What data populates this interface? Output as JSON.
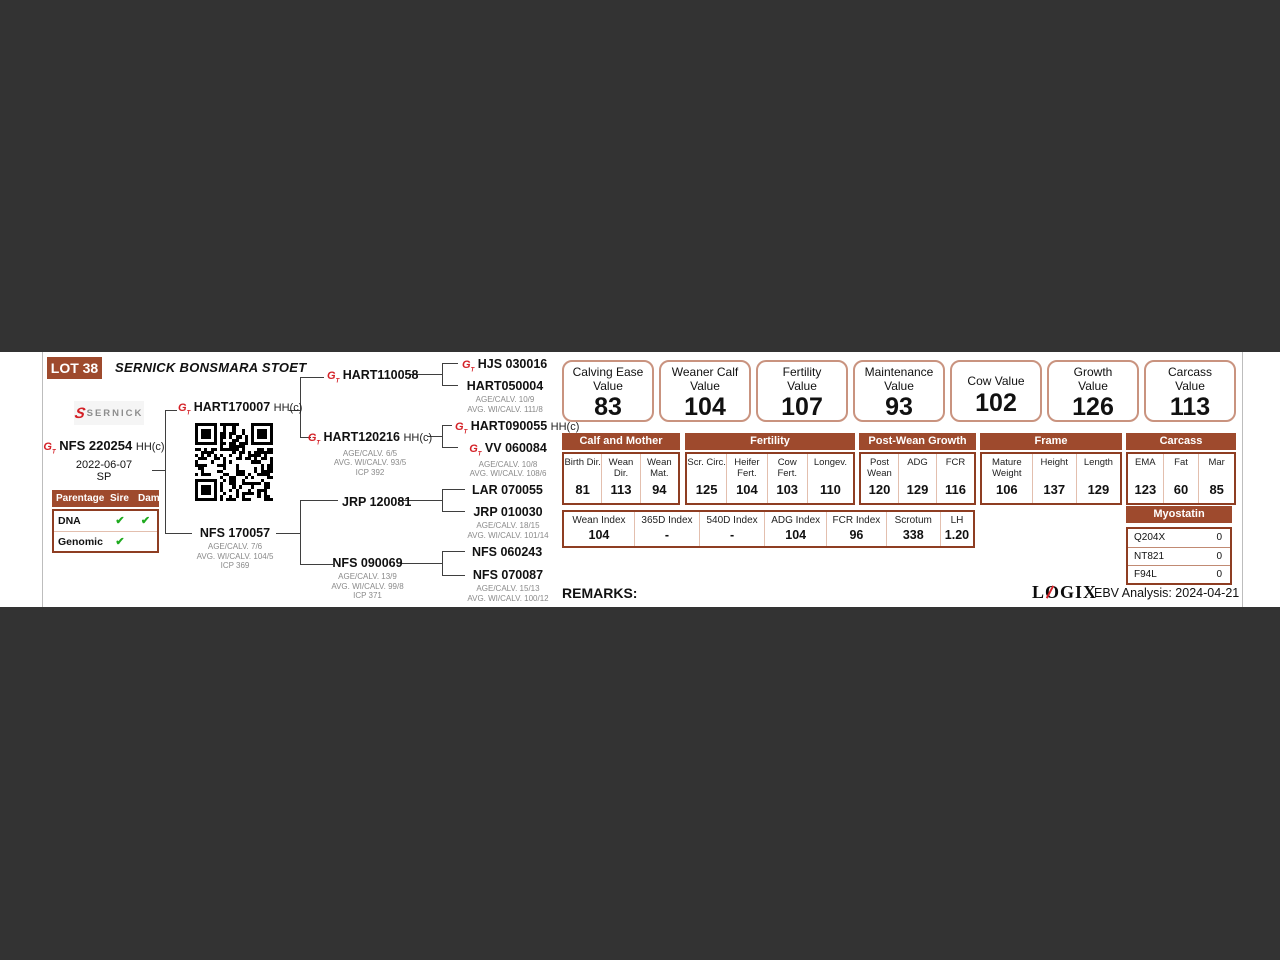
{
  "header": {
    "lot": "LOT 38",
    "title": "SERNICK BONSMARA STOET",
    "brand": "SERNICK"
  },
  "icons": {
    "gt_main": "G",
    "gt_sub": "T",
    "check": "✔",
    "brand_s": "S"
  },
  "colors": {
    "accent_brown": "#9e4a2d",
    "value_box_border": "#c9937f",
    "check_green": "#1faa1f",
    "logo_red": "#d42127"
  },
  "animal": {
    "id": "NFS 220254",
    "suffix": "HH(c)",
    "dob": "2022-06-07",
    "reg": "SP"
  },
  "parentage": {
    "headers": [
      "Parentage",
      "Sire",
      "Dam"
    ],
    "rows": [
      {
        "label": "DNA",
        "sire": "✔",
        "dam": "✔"
      },
      {
        "label": "Genomic",
        "sire": "✔",
        "dam": ""
      }
    ]
  },
  "pedigree": {
    "sire": {
      "id": "HART170007",
      "suffix": "HH(c)"
    },
    "dam": {
      "id": "NFS 170057",
      "stats": [
        "AGE/CALV. 7/6",
        "AVG. WI/CALV. 104/5",
        "ICP 369"
      ]
    },
    "ss": {
      "id": "HART110058"
    },
    "sd": {
      "id": "HART120216",
      "suffix": "HH(c)",
      "stats": [
        "AGE/CALV. 6/5",
        "AVG. WI/CALV. 93/5",
        "ICP 392"
      ]
    },
    "ds": {
      "id": "JRP 120081"
    },
    "dd": {
      "id": "NFS 090069",
      "stats": [
        "AGE/CALV. 13/9",
        "AVG. WI/CALV. 99/8",
        "ICP 371"
      ]
    },
    "sss": {
      "id": "HJS 030016"
    },
    "ssd": {
      "id": "HART050004",
      "stats": [
        "AGE/CALV. 10/9",
        "AVG. WI/CALV. 111/8"
      ]
    },
    "sds": {
      "id": "HART090055",
      "suffix": "HH(c)"
    },
    "sdd": {
      "id": "VV 060084",
      "stats": [
        "AGE/CALV. 10/8",
        "AVG. WI/CALV. 108/6"
      ]
    },
    "dss": {
      "id": "LAR 070055"
    },
    "dsd": {
      "id": "JRP 010030",
      "stats": [
        "AGE/CALV. 18/15",
        "AVG. WI/CALV. 101/14"
      ]
    },
    "dds": {
      "id": "NFS 060243"
    },
    "ddd": {
      "id": "NFS 070087",
      "stats": [
        "AGE/CALV. 15/13",
        "AVG. WI/CALV. 100/12"
      ]
    }
  },
  "values": [
    {
      "l1": "Calving Ease",
      "l2": "Value",
      "value": "83"
    },
    {
      "l1": "Weaner Calf",
      "l2": "Value",
      "value": "104"
    },
    {
      "l1": "Fertility",
      "l2": "Value",
      "value": "107"
    },
    {
      "l1": "Maintenance",
      "l2": "Value",
      "value": "93"
    },
    {
      "l1": "Cow Value",
      "l2": "",
      "value": "102"
    },
    {
      "l1": "Growth",
      "l2": "Value",
      "value": "126"
    },
    {
      "l1": "Carcass",
      "l2": "Value",
      "value": "113"
    }
  ],
  "ebv_groups": [
    {
      "title": "Calf and Mother",
      "cols": [
        {
          "label": "Birth Dir.",
          "value": "81"
        },
        {
          "label": "Wean Dir.",
          "value": "113"
        },
        {
          "label": "Wean Mat.",
          "value": "94"
        }
      ]
    },
    {
      "title": "Fertility",
      "cols": [
        {
          "label": "Scr. Circ.",
          "value": "125"
        },
        {
          "label": "Heifer Fert.",
          "value": "104"
        },
        {
          "label": "Cow Fert.",
          "value": "103"
        },
        {
          "label": "Longev.",
          "value": "110"
        }
      ]
    },
    {
      "title": "Post-Wean Growth",
      "cols": [
        {
          "label": "Post Wean",
          "value": "120"
        },
        {
          "label": "ADG",
          "value": "129"
        },
        {
          "label": "FCR",
          "value": "116"
        }
      ]
    },
    {
      "title": "Frame",
      "cols": [
        {
          "label": "Mature Weight",
          "value": "106"
        },
        {
          "label": "Height",
          "value": "137"
        },
        {
          "label": "Length",
          "value": "129"
        }
      ]
    },
    {
      "title": "Carcass",
      "cols": [
        {
          "label": "EMA",
          "value": "123"
        },
        {
          "label": "Fat",
          "value": "60"
        },
        {
          "label": "Mar",
          "value": "85"
        }
      ]
    }
  ],
  "index_row": [
    {
      "label": "Wean Index",
      "value": "104"
    },
    {
      "label": "365D Index",
      "value": "-"
    },
    {
      "label": "540D Index",
      "value": "-"
    },
    {
      "label": "ADG Index",
      "value": "104"
    },
    {
      "label": "FCR Index",
      "value": "96"
    },
    {
      "label": "Scrotum",
      "value": "338"
    },
    {
      "label": "LH",
      "value": "1.20"
    }
  ],
  "myostatin": {
    "title": "Myostatin",
    "rows": [
      {
        "label": "Q204X",
        "value": "0"
      },
      {
        "label": "NT821",
        "value": "0"
      },
      {
        "label": "F94L",
        "value": "0"
      }
    ]
  },
  "footer": {
    "remarks_label": "REMARKS:",
    "logix": "LOGIX",
    "ebv_analysis": "EBV Analysis: 2024-04-21"
  }
}
